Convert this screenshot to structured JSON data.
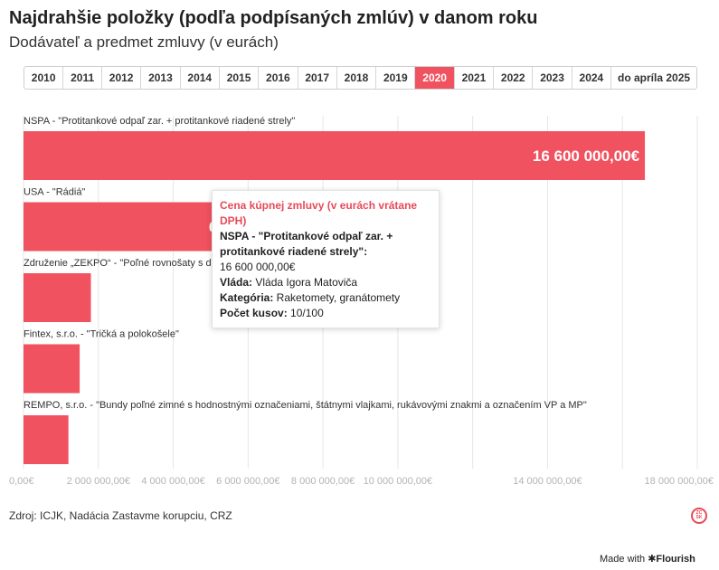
{
  "header": {
    "title": "Najdrahšie položky (podľa podpísaných zmlúv) v danom roku",
    "subtitle": "Dodávateľ a predmet zmluvy (v eurách)"
  },
  "years": [
    "2010",
    "2011",
    "2012",
    "2013",
    "2014",
    "2015",
    "2016",
    "2017",
    "2018",
    "2019",
    "2020",
    "2021",
    "2022",
    "2023",
    "2024",
    "do apríla 2025"
  ],
  "selected_year": "2020",
  "chart_data": {
    "type": "bar",
    "orientation": "horizontal",
    "categories": [
      "NSPA - \"Protitankové odpaľ zar. + protitankové riadené strely\"",
      "USA - \"Rádiá\"",
      "Združenie „ZEKPO“ - \"Poľné rovnošaty s di",
      "Fintex, s.r.o. - \"Tričká a polokošele\"",
      "REMPO, s.r.o. - \"Bundy poľné zimné s hodnostnými označeniami, štátnymi vlajkami, rukávovými znakmi a označením VP a MP\""
    ],
    "values": [
      16600000,
      6466100,
      1800000,
      1500000,
      1200000
    ],
    "value_labels": [
      "16 600 000,00€",
      "6 466 1",
      "",
      "",
      ""
    ],
    "xlim": [
      0,
      18000000
    ],
    "xticks": [
      {
        "value": 0,
        "label": "0,00€"
      },
      {
        "value": 2000000,
        "label": "2 000 000,00€"
      },
      {
        "value": 4000000,
        "label": "4 000 000,00€"
      },
      {
        "value": 6000000,
        "label": "6 000 000,00€"
      },
      {
        "value": 8000000,
        "label": "8 000 000,00€"
      },
      {
        "value": 10000000,
        "label": "10 000 000,00€"
      },
      {
        "value": 14000000,
        "label": "14 000 000,00€"
      },
      {
        "value": 18000000,
        "label": "18 000 000,00€"
      }
    ],
    "gridlines": [
      0,
      2000000,
      4000000,
      6000000,
      8000000,
      10000000,
      12000000,
      14000000,
      16000000,
      18000000
    ],
    "grid": true,
    "bar_color": "#f0525f"
  },
  "tooltip": {
    "heading": "Cena kúpnej zmluvy (v eurách vrátane DPH)",
    "name": "NSPA - \"Protitankové odpaľ zar. + protitankové riadené strely\":",
    "value": "16 600 000,00€",
    "vlada_label": "Vláda:",
    "vlada_value": " Vláda Igora Matoviča",
    "kategoria_label": "Kategória:",
    "kategoria_value": " Raketomety, granátomety",
    "pocet_label": "Počet kusov:",
    "pocet_value": " 10/100"
  },
  "footer": {
    "source": "Zdroj: ICJK, Nadácia Zastavme korupciu, CRZ",
    "logo_text": "ZC SK",
    "made_with": "Made with",
    "flourish": "✱Flourish"
  },
  "colors": {
    "accent": "#f0525f",
    "tooltip_heading": "#e84a57"
  }
}
